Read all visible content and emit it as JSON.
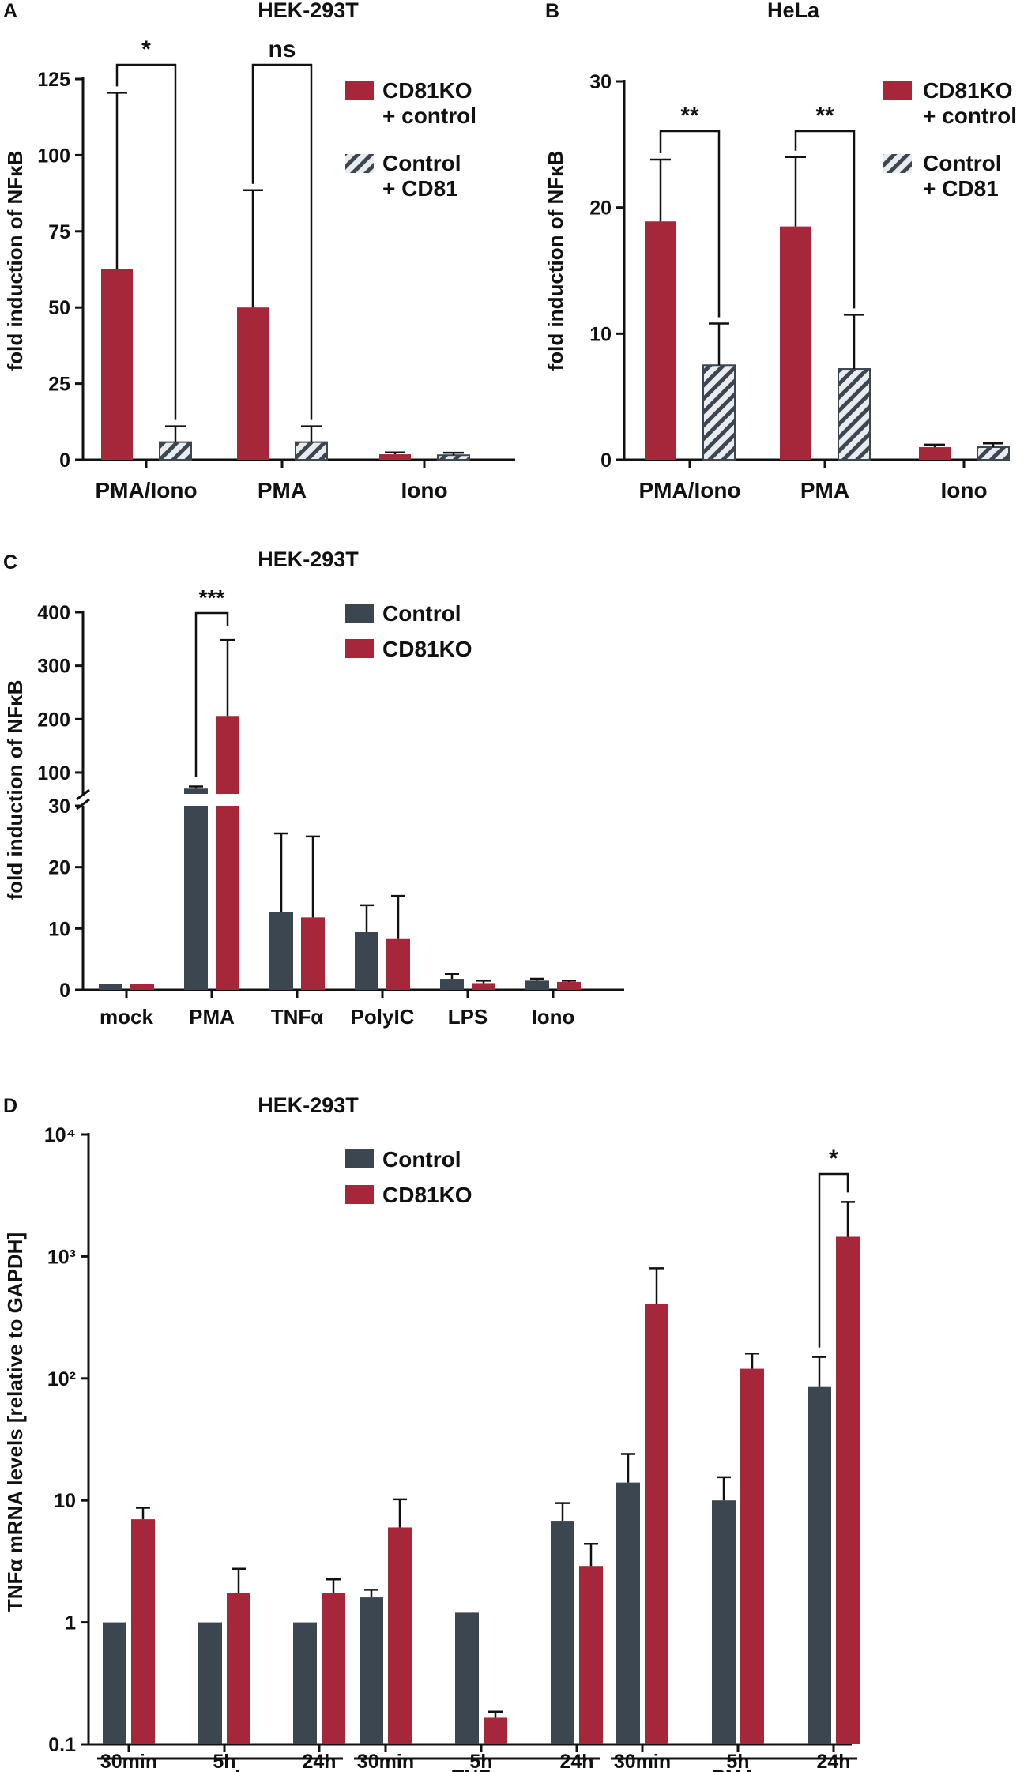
{
  "colors": {
    "red": "#a6273a",
    "dark": "#3c4650",
    "hatch_fill": "#e8ecef"
  },
  "chart_data": [
    {
      "panel": "A",
      "type": "bar",
      "title": "HEK-293T",
      "ylabel": "fold  induction of NFκB",
      "ylim": [
        0,
        125
      ],
      "yticks": [
        0,
        25,
        50,
        75,
        100,
        125
      ],
      "categories": [
        "PMA/Iono",
        "PMA",
        "Iono"
      ],
      "series": [
        {
          "name": "CD81KO\n+ control",
          "style": "solid-red",
          "values": [
            62.5,
            50,
            1.8
          ],
          "errors": [
            58,
            38.5,
            0.6
          ]
        },
        {
          "name": "Control\n+ CD81",
          "style": "hatched",
          "values": [
            5.8,
            5.8,
            1.5
          ],
          "errors": [
            5.2,
            5.2,
            0.8
          ]
        }
      ],
      "significance": [
        {
          "category": "PMA/Iono",
          "label": "*"
        },
        {
          "category": "PMA",
          "label": "ns"
        }
      ]
    },
    {
      "panel": "B",
      "type": "bar",
      "title": "HeLa",
      "ylabel": "fold  induction of NFκB",
      "ylim": [
        0,
        30
      ],
      "yticks": [
        0,
        10,
        20,
        30
      ],
      "categories": [
        "PMA/Iono",
        "PMA",
        "Iono"
      ],
      "series": [
        {
          "name": "CD81KO\n+ control",
          "style": "solid-red",
          "values": [
            18.9,
            18.5,
            1.0
          ],
          "errors": [
            4.9,
            5.5,
            0.2
          ]
        },
        {
          "name": "Control\n+ CD81",
          "style": "hatched",
          "values": [
            7.5,
            7.2,
            1.0
          ],
          "errors": [
            3.3,
            4.3,
            0.3
          ]
        }
      ],
      "significance": [
        {
          "category": "PMA/Iono",
          "label": "**"
        },
        {
          "category": "PMA",
          "label": "**"
        }
      ]
    },
    {
      "panel": "C",
      "type": "bar",
      "title": "HEK-293T",
      "ylabel": "fold  induction of NFκB",
      "axis_break": {
        "lower": [
          0,
          30
        ],
        "upper": [
          60,
          400
        ]
      },
      "yticks_lower": [
        0,
        10,
        20,
        30
      ],
      "yticks_upper": [
        100,
        200,
        300,
        400
      ],
      "categories": [
        "mock",
        "PMA",
        "TNFα",
        "PolyIC",
        "LPS",
        "Iono"
      ],
      "series": [
        {
          "name": "Control",
          "style": "solid-dark",
          "values": [
            1,
            70,
            12.7,
            9.4,
            1.8,
            1.5
          ],
          "errors": [
            0,
            4,
            12.8,
            4.4,
            0.8,
            0.3
          ]
        },
        {
          "name": "CD81KO",
          "style": "solid-red",
          "values": [
            1,
            206,
            11.8,
            8.4,
            1.1,
            1.3
          ],
          "errors": [
            0,
            142,
            13.2,
            6.9,
            0.4,
            0.2
          ]
        }
      ],
      "significance": [
        {
          "category": "PMA",
          "label": "***"
        }
      ]
    },
    {
      "panel": "D",
      "type": "bar",
      "title": "HEK-293T",
      "yscale": "log",
      "ylabel": "TNFα mRNA levels [relative to GAPDH]",
      "ylim": [
        0.1,
        10000
      ],
      "ytick_labels": [
        "0.1",
        "1",
        "10",
        "10²",
        "10³",
        "10⁴"
      ],
      "categories": [
        "30min",
        "5h",
        "24h",
        "30min",
        "5h",
        "24h",
        "30min",
        "5h",
        "24h"
      ],
      "groups": [
        {
          "label": "mock"
        },
        {
          "label": "TNFα"
        },
        {
          "label": "PMA"
        }
      ],
      "series": [
        {
          "name": "Control",
          "style": "solid-dark",
          "values": [
            1,
            1,
            1,
            1.6,
            1.2,
            6.8,
            14,
            10,
            85
          ],
          "errors_up": [
            1,
            1,
            1,
            1.85,
            1.2,
            9.5,
            24,
            15.5,
            150
          ]
        },
        {
          "name": "CD81KO",
          "style": "solid-red",
          "values": [
            7,
            1.75,
            1.75,
            6,
            0.165,
            2.9,
            410,
            120,
            1450
          ],
          "errors_up": [
            8.7,
            2.75,
            2.25,
            10.2,
            0.185,
            4.4,
            800,
            160,
            2800
          ]
        }
      ],
      "significance": [
        {
          "index": 8,
          "label": "*"
        }
      ]
    }
  ]
}
